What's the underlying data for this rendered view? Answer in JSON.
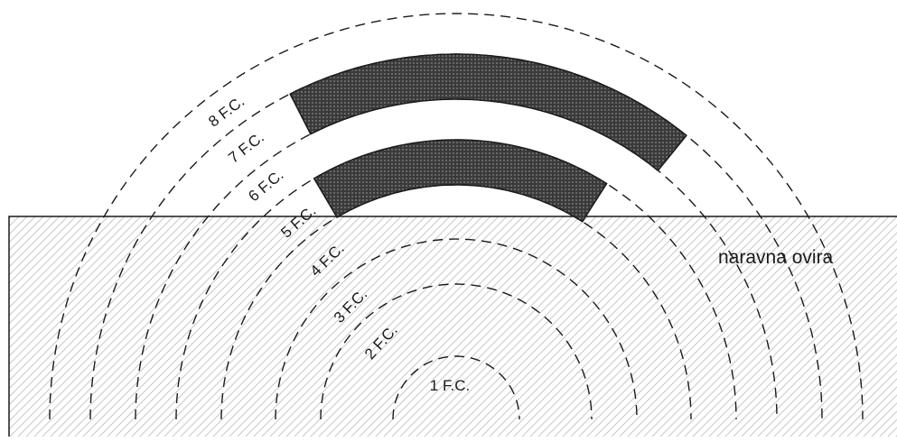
{
  "ground_label": "naravna ovira",
  "rings": [
    {
      "label": "1 F.C."
    },
    {
      "label": "2 F.C."
    },
    {
      "label": "3 F.C."
    },
    {
      "label": "4 F.C."
    },
    {
      "label": "5 F.C."
    },
    {
      "label": "6 F.C."
    },
    {
      "label": "7 F.C."
    },
    {
      "label": "8 F.C."
    }
  ],
  "colors": {
    "line": "#1a1a1a",
    "band_fill": "#4a4a4a",
    "hatch": "#c8c8c8"
  }
}
